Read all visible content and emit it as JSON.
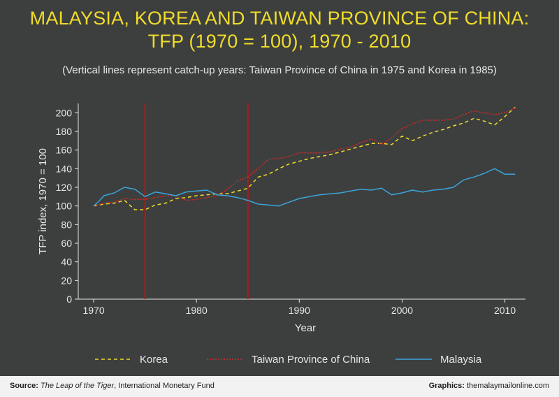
{
  "title_line1": "MALAYSIA, KOREA AND TAIWAN PROVINCE OF CHINA:",
  "title_line2": "TFP (1970 = 100), 1970 - 2010",
  "subtitle": "(Vertical lines represent catch-up years: Taiwan Province of China in 1975 and Korea in 1985)",
  "footer": {
    "source_label": "Source:",
    "source_title": "The Leap of the Tiger",
    "source_rest": ", International Monetary Fund",
    "credit_label": "Graphics:",
    "credit_site": "themalaymailonline.com"
  },
  "colors": {
    "korea": "#f0dc2a",
    "taiwan": "#d42a2a",
    "malaysia": "#3aa4dc",
    "vline": "#b5161c",
    "axis": "#e6e6e6"
  },
  "chart_data": {
    "type": "line",
    "xlabel": "Year",
    "ylabel": "TFP index, 1970 = 100",
    "xlim": [
      1968.5,
      2012
    ],
    "ylim": [
      0,
      210
    ],
    "xticks": [
      1970,
      1980,
      1990,
      2000,
      2010
    ],
    "yticks": [
      0,
      20,
      40,
      60,
      80,
      100,
      120,
      140,
      160,
      180,
      200
    ],
    "vlines": [
      1975,
      1985
    ],
    "legend_position": "bottom",
    "series": [
      {
        "name": "Korea",
        "style": "dashed",
        "x": [
          1970,
          1971,
          1972,
          1973,
          1974,
          1975,
          1976,
          1977,
          1978,
          1979,
          1980,
          1981,
          1982,
          1983,
          1984,
          1985,
          1986,
          1987,
          1988,
          1989,
          1990,
          1991,
          1992,
          1993,
          1994,
          1995,
          1996,
          1997,
          1998,
          1999,
          2000,
          2001,
          2002,
          2003,
          2004,
          2005,
          2006,
          2007,
          2008,
          2009,
          2010,
          2011
        ],
        "values": [
          100,
          102,
          103,
          106,
          96,
          96,
          101,
          103,
          108,
          109,
          111,
          112,
          113,
          113,
          116,
          119,
          131,
          134,
          140,
          145,
          148,
          151,
          153,
          155,
          158,
          161,
          164,
          167,
          167,
          166,
          175,
          170,
          175,
          179,
          182,
          186,
          189,
          194,
          191,
          187,
          196,
          206
        ]
      },
      {
        "name": "Taiwan Province of China",
        "style": "dotted",
        "x": [
          1970,
          1971,
          1972,
          1973,
          1974,
          1975,
          1976,
          1977,
          1978,
          1979,
          1980,
          1981,
          1982,
          1983,
          1984,
          1985,
          1986,
          1987,
          1988,
          1989,
          1990,
          1991,
          1992,
          1993,
          1994,
          1995,
          1996,
          1997,
          1998,
          1999,
          2000,
          2001,
          2002,
          2003,
          2004,
          2005,
          2006,
          2007,
          2008,
          2009,
          2010,
          2011
        ],
        "values": [
          100,
          103,
          104,
          108,
          107,
          107,
          109,
          111,
          111,
          106,
          107,
          109,
          111,
          118,
          127,
          131,
          140,
          150,
          151,
          153,
          157,
          157,
          157,
          158,
          161,
          163,
          168,
          172,
          166,
          173,
          183,
          188,
          192,
          192,
          192,
          193,
          198,
          202,
          200,
          198,
          200,
          205
        ]
      },
      {
        "name": "Malaysia",
        "style": "solid",
        "x": [
          1970,
          1970.5,
          1971,
          1972,
          1973,
          1974,
          1975,
          1976,
          1977,
          1978,
          1979,
          1980,
          1981,
          1982,
          1983,
          1984,
          1985,
          1986,
          1987,
          1988,
          1989,
          1990,
          1991,
          1992,
          1993,
          1994,
          1995,
          1996,
          1997,
          1998,
          1999,
          2000,
          2001,
          2002,
          2003,
          2004,
          2005,
          2006,
          2007,
          2008,
          2009,
          2010,
          2011
        ],
        "values": [
          100,
          105,
          111,
          114,
          120,
          118,
          110,
          115,
          113,
          111,
          115,
          116,
          117,
          112,
          111,
          109,
          106,
          102,
          101,
          100,
          104,
          108,
          110,
          112,
          113,
          114,
          116,
          118,
          117,
          119,
          112,
          114,
          117,
          115,
          117,
          118,
          120,
          128,
          131,
          135,
          140,
          134,
          134
        ]
      }
    ]
  }
}
